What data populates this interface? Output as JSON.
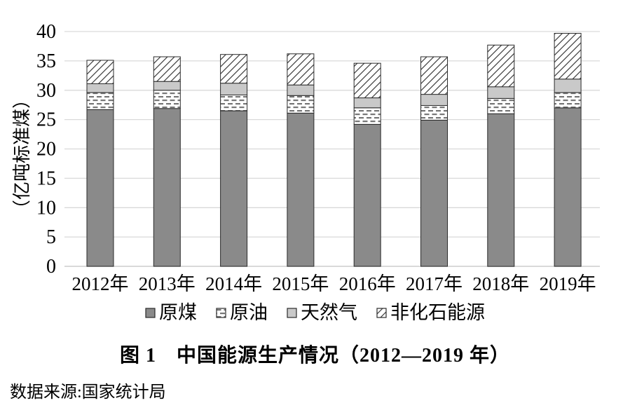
{
  "chart_data": {
    "type": "bar",
    "stacked": true,
    "title": "图 1　中国能源生产情况（2012—2019 年）",
    "source": "数据来源:国家统计局",
    "ylabel": "（亿吨标准煤）",
    "ylim": [
      0,
      40
    ],
    "yticks": [
      0,
      5,
      10,
      15,
      20,
      25,
      30,
      35,
      40
    ],
    "grid": true,
    "legend_position": "bottom",
    "categories": [
      "2012年",
      "2013年",
      "2014年",
      "2015年",
      "2016年",
      "2017年",
      "2018年",
      "2019年"
    ],
    "series": [
      {
        "name": "原煤",
        "swatch": "solid-dark-gray",
        "values": [
          26.7,
          26.9,
          26.5,
          26.1,
          24.2,
          24.9,
          26.0,
          27.0
        ]
      },
      {
        "name": "原油",
        "swatch": "dashed-pattern",
        "values": [
          2.9,
          3.1,
          2.7,
          3.0,
          2.8,
          2.5,
          2.6,
          2.6
        ]
      },
      {
        "name": "天然气",
        "swatch": "solid-light-gray",
        "values": [
          1.5,
          1.5,
          2.0,
          1.8,
          1.7,
          1.9,
          2.0,
          2.3
        ]
      },
      {
        "name": "非化石能源",
        "swatch": "diagonal-hatch",
        "values": [
          4.0,
          4.2,
          4.9,
          5.3,
          5.9,
          6.4,
          7.1,
          7.8
        ]
      }
    ],
    "totals": [
      35.1,
      35.7,
      36.1,
      36.2,
      34.6,
      35.7,
      37.7,
      39.7
    ],
    "style": {
      "coal_color": "#8a8a8a",
      "gas_color": "#c9c9c9",
      "pattern_white": "#ffffff",
      "outline_color": "#2b2b2b",
      "grid_color": "#d9d9d9"
    }
  }
}
